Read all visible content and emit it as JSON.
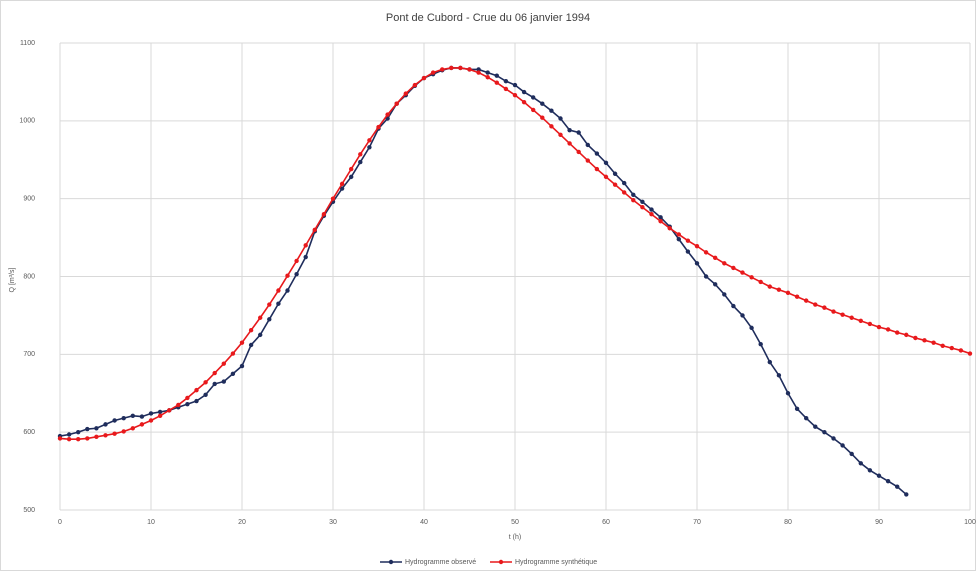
{
  "chart_data": {
    "type": "line",
    "title": "Pont de Cubord - Crue du 06 janvier 1994",
    "x_label": "t (h)",
    "y_label": "Q [m³/s]",
    "xlim": [
      0,
      100
    ],
    "xticks": [
      0,
      10,
      20,
      30,
      40,
      50,
      60,
      70,
      80,
      90,
      100
    ],
    "ylim": [
      500,
      1100
    ],
    "yticks": [
      500,
      600,
      700,
      800,
      900,
      1000,
      1100
    ],
    "grid": true,
    "legend": "bottom",
    "series": [
      {
        "name": "Hydrogramme observé",
        "color": "#1f2d5c",
        "x": [
          0,
          1,
          2,
          3,
          4,
          5,
          6,
          7,
          8,
          9,
          10,
          11,
          12,
          13,
          14,
          15,
          16,
          17,
          18,
          19,
          20,
          21,
          22,
          23,
          24,
          25,
          26,
          27,
          28,
          29,
          30,
          31,
          32,
          33,
          34,
          35,
          36,
          37,
          38,
          39,
          40,
          41,
          42,
          43,
          44,
          45,
          46,
          47,
          48,
          49,
          50,
          51,
          52,
          53,
          54,
          55,
          56,
          57,
          58,
          59,
          60,
          61,
          62,
          63,
          64,
          65,
          66,
          67,
          68,
          69,
          70,
          71,
          72,
          73,
          74,
          75,
          76,
          77,
          78,
          79,
          80,
          81,
          82,
          83,
          84,
          85,
          86,
          87,
          88,
          89,
          90,
          91,
          92,
          93
        ],
        "values": [
          595,
          597,
          600,
          604,
          605,
          610,
          615,
          618,
          621,
          620,
          624,
          626,
          628,
          632,
          636,
          640,
          648,
          662,
          665,
          675,
          685,
          712,
          725,
          745,
          765,
          782,
          803,
          825,
          858,
          878,
          896,
          913,
          928,
          947,
          966,
          990,
          1003,
          1022,
          1033,
          1045,
          1055,
          1060,
          1065,
          1068,
          1068,
          1066,
          1066,
          1062,
          1058,
          1051,
          1046,
          1037,
          1030,
          1022,
          1013,
          1003,
          988,
          985,
          969,
          958,
          946,
          932,
          920,
          905,
          896,
          886,
          876,
          864,
          848,
          832,
          817,
          800,
          790,
          777,
          762,
          750,
          734,
          713,
          690,
          673,
          650,
          630,
          618,
          607,
          600,
          592,
          583,
          572,
          560,
          551,
          544,
          537,
          530,
          520
        ]
      },
      {
        "name": "Hydrogramme synthétique",
        "color": "#e8191c",
        "x": [
          0,
          1,
          2,
          3,
          4,
          5,
          6,
          7,
          8,
          9,
          10,
          11,
          12,
          13,
          14,
          15,
          16,
          17,
          18,
          19,
          20,
          21,
          22,
          23,
          24,
          25,
          26,
          27,
          28,
          29,
          30,
          31,
          32,
          33,
          34,
          35,
          36,
          37,
          38,
          39,
          40,
          41,
          42,
          43,
          44,
          45,
          46,
          47,
          48,
          49,
          50,
          51,
          52,
          53,
          54,
          55,
          56,
          57,
          58,
          59,
          60,
          61,
          62,
          63,
          64,
          65,
          66,
          67,
          68,
          69,
          70,
          71,
          72,
          73,
          74,
          75,
          76,
          77,
          78,
          79,
          80,
          81,
          82,
          83,
          84,
          85,
          86,
          87,
          88,
          89,
          90,
          91,
          92,
          93,
          94,
          95,
          96,
          97,
          98,
          99,
          100
        ],
        "values": [
          592,
          591,
          591,
          592,
          594,
          596,
          598,
          601,
          605,
          610,
          615,
          621,
          628,
          635,
          644,
          654,
          664,
          676,
          688,
          701,
          715,
          731,
          747,
          764,
          782,
          801,
          820,
          840,
          860,
          880,
          900,
          919,
          938,
          957,
          975,
          992,
          1008,
          1022,
          1035,
          1046,
          1055,
          1062,
          1066,
          1068,
          1068,
          1066,
          1062,
          1056,
          1049,
          1041,
          1033,
          1024,
          1014,
          1004,
          993,
          982,
          971,
          960,
          949,
          938,
          928,
          918,
          908,
          898,
          889,
          880,
          871,
          862,
          854,
          846,
          839,
          831,
          824,
          817,
          811,
          805,
          799,
          793,
          787,
          783,
          779,
          774,
          769,
          764,
          760,
          755,
          751,
          747,
          743,
          739,
          735,
          732,
          728,
          725,
          721,
          718,
          715,
          711,
          708,
          705,
          701
        ]
      }
    ]
  }
}
